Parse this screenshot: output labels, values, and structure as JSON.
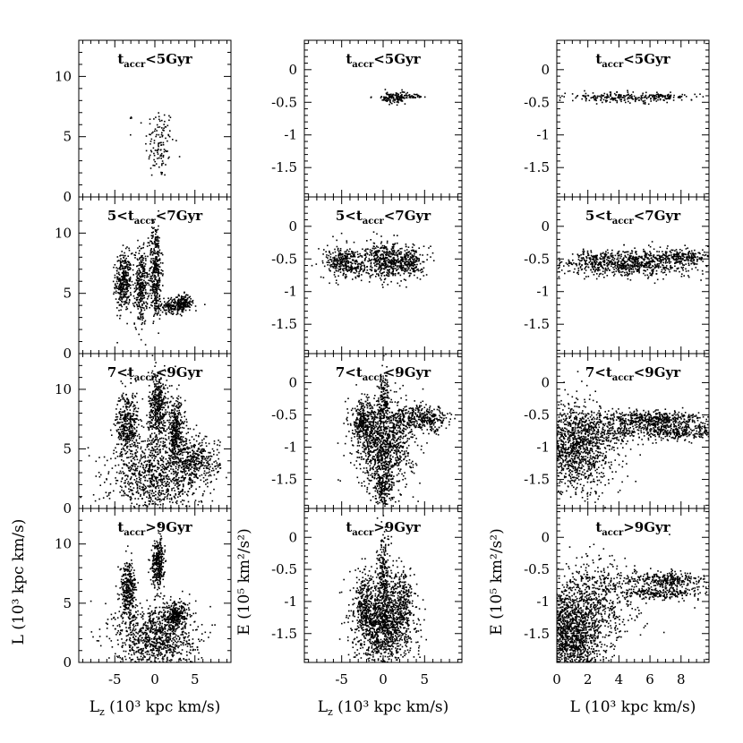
{
  "figure": {
    "columns": [
      {
        "key": "lz_l",
        "xlabel_main": "L",
        "xlabel_sub": "z",
        "xlabel_rest": " (10³ kpc km/s)",
        "ylabel": "L  (10³ kpc km/s)"
      },
      {
        "key": "lz_e",
        "xlabel_main": "L",
        "xlabel_sub": "z",
        "xlabel_rest": " (10³ kpc km/s)",
        "ylabel": "E  (10⁵ km²/s²)"
      },
      {
        "key": "l_e",
        "xlabel_main": "L",
        "xlabel_sub": "",
        "xlabel_rest": " (10³ kpc km/s)",
        "ylabel": "E  (10⁵ km²/s²)"
      }
    ],
    "rows": [
      {
        "pre": "",
        "mid": "t",
        "sub": "accr",
        "post": "<5Gyr"
      },
      {
        "pre": "5<",
        "mid": "t",
        "sub": "accr",
        "post": "<7Gyr"
      },
      {
        "pre": "7<",
        "mid": "t",
        "sub": "accr",
        "post": "<9Gyr"
      },
      {
        "pre": "",
        "mid": "t",
        "sub": "accr",
        "post": ">9Gyr"
      }
    ]
  },
  "chart_data": [
    {
      "type": "scatter",
      "column": "lz_l",
      "xlim": [
        -9.5,
        9.5
      ],
      "ylim": [
        0,
        13
      ],
      "xticks": [
        -5,
        0,
        5
      ],
      "yticks": [
        0,
        5,
        10
      ],
      "xticklabels": [
        "-5",
        "0",
        "5"
      ],
      "yticklabels": [
        "0",
        "5",
        "10"
      ],
      "panels": [
        {
          "label_row": 0,
          "clouds": [
            {
              "cx": 0.5,
              "cy": 4.5,
              "sx": 0.9,
              "sy": 1.5,
              "n": 120
            },
            {
              "cx": -3.0,
              "cy": 6.6,
              "sx": 0.1,
              "sy": 0.1,
              "n": 3
            }
          ]
        },
        {
          "label_row": 1,
          "clouds": [
            {
              "cx": -4.0,
              "cy": 6.0,
              "sx": 0.5,
              "sy": 1.2,
              "n": 360
            },
            {
              "cx": -1.8,
              "cy": 5.6,
              "sx": 0.4,
              "sy": 1.6,
              "n": 300
            },
            {
              "cx": 0.0,
              "cy": 7.0,
              "sx": 0.4,
              "sy": 2.0,
              "n": 360
            },
            {
              "cx": 2.3,
              "cy": 4.0,
              "sx": 1.2,
              "sy": 0.3,
              "n": 220
            },
            {
              "cx": 3.5,
              "cy": 4.4,
              "sx": 0.5,
              "sy": 0.3,
              "n": 100
            }
          ]
        },
        {
          "label_row": 2,
          "clouds": [
            {
              "cx": -3.5,
              "cy": 7.0,
              "sx": 0.7,
              "sy": 1.5,
              "n": 420
            },
            {
              "cx": 0.3,
              "cy": 8.5,
              "sx": 0.6,
              "sy": 1.6,
              "n": 450
            },
            {
              "cx": 2.5,
              "cy": 6.5,
              "sx": 0.6,
              "sy": 1.4,
              "n": 360
            },
            {
              "cx": 0.0,
              "cy": 2.5,
              "sx": 2.8,
              "sy": 1.6,
              "n": 900
            },
            {
              "cx": 5.0,
              "cy": 4.0,
              "sx": 1.5,
              "sy": 1.0,
              "n": 380
            }
          ]
        },
        {
          "label_row": 3,
          "clouds": [
            {
              "cx": -3.4,
              "cy": 6.2,
              "sx": 0.5,
              "sy": 1.2,
              "n": 320
            },
            {
              "cx": 0.3,
              "cy": 8.4,
              "sx": 0.4,
              "sy": 1.0,
              "n": 320
            },
            {
              "cx": 0.0,
              "cy": 2.2,
              "sx": 2.5,
              "sy": 1.4,
              "n": 950
            },
            {
              "cx": 2.5,
              "cy": 4.0,
              "sx": 0.8,
              "sy": 0.6,
              "n": 260
            }
          ]
        }
      ]
    },
    {
      "type": "scatter",
      "column": "lz_e",
      "xlim": [
        -9.5,
        9.5
      ],
      "ylim": [
        -1.95,
        0.45
      ],
      "xticks": [
        -5,
        0,
        5
      ],
      "yticks": [
        -1.5,
        -1,
        -0.5,
        0
      ],
      "xticklabels": [
        "-5",
        "0",
        "5"
      ],
      "yticklabels": [
        "-1.5",
        "-1",
        "-0.5",
        "0"
      ],
      "panels": [
        {
          "label_row": 0,
          "clouds": [
            {
              "cx": 1.2,
              "cy": -0.42,
              "sx": 0.7,
              "sy": 0.05,
              "n": 110
            },
            {
              "cx": 3.5,
              "cy": -0.4,
              "sx": 0.9,
              "sy": 0.02,
              "n": 40
            },
            {
              "cx": -1.5,
              "cy": -0.42,
              "sx": 0.05,
              "sy": 0.02,
              "n": 2
            }
          ]
        },
        {
          "label_row": 1,
          "clouds": [
            {
              "cx": -4.5,
              "cy": -0.55,
              "sx": 1.4,
              "sy": 0.12,
              "n": 360
            },
            {
              "cx": 0.0,
              "cy": -0.52,
              "sx": 1.0,
              "sy": 0.14,
              "n": 340
            },
            {
              "cx": 2.8,
              "cy": -0.53,
              "sx": 1.0,
              "sy": 0.12,
              "n": 280
            }
          ]
        },
        {
          "label_row": 2,
          "clouds": [
            {
              "cx": 0.0,
              "cy": -0.95,
              "sx": 1.7,
              "sy": 0.35,
              "n": 1100
            },
            {
              "cx": -2.5,
              "cy": -0.6,
              "sx": 0.7,
              "sy": 0.15,
              "n": 260
            },
            {
              "cx": 4.5,
              "cy": -0.55,
              "sx": 1.8,
              "sy": 0.1,
              "n": 380
            },
            {
              "cx": 0.0,
              "cy": -0.2,
              "sx": 0.3,
              "sy": 0.2,
              "n": 140
            },
            {
              "cx": 0.0,
              "cy": -1.6,
              "sx": 0.5,
              "sy": 0.2,
              "n": 180
            }
          ]
        },
        {
          "label_row": 3,
          "clouds": [
            {
              "cx": 0.0,
              "cy": -1.35,
              "sx": 1.7,
              "sy": 0.35,
              "n": 1300
            },
            {
              "cx": 0.0,
              "cy": -0.55,
              "sx": 0.4,
              "sy": 0.3,
              "n": 220
            },
            {
              "cx": -2.3,
              "cy": -1.0,
              "sx": 0.6,
              "sy": 0.25,
              "n": 220
            },
            {
              "cx": 2.3,
              "cy": -1.0,
              "sx": 0.6,
              "sy": 0.25,
              "n": 220
            }
          ]
        }
      ]
    },
    {
      "type": "scatter",
      "column": "l_e",
      "xlim": [
        0,
        9.8
      ],
      "ylim": [
        -1.95,
        0.45
      ],
      "xticks": [
        0,
        2,
        4,
        6,
        8
      ],
      "yticks": [
        -1.5,
        -1,
        -0.5,
        0
      ],
      "xticklabels": [
        "0",
        "2",
        "4",
        "6",
        "8"
      ],
      "yticklabels": [
        "-1.5",
        "-1",
        "-0.5",
        "0"
      ],
      "panels": [
        {
          "label_row": 0,
          "clouds": [
            {
              "cx": 4.0,
              "cy": -0.42,
              "sx": 1.8,
              "sy": 0.04,
              "n": 220
            },
            {
              "cx": 7.0,
              "cy": -0.4,
              "sx": 1.0,
              "sy": 0.02,
              "n": 60
            }
          ]
        },
        {
          "label_row": 1,
          "clouds": [
            {
              "cx": 4.5,
              "cy": -0.55,
              "sx": 2.3,
              "sy": 0.1,
              "n": 900
            },
            {
              "cx": 8.0,
              "cy": -0.45,
              "sx": 0.8,
              "sy": 0.05,
              "n": 150
            }
          ]
        },
        {
          "label_row": 2,
          "clouds": [
            {
              "cx": 1.3,
              "cy": -1.0,
              "sx": 1.2,
              "sy": 0.35,
              "n": 1200
            },
            {
              "cx": 6.5,
              "cy": -0.55,
              "sx": 1.6,
              "sy": 0.06,
              "n": 420
            },
            {
              "cx": 7.5,
              "cy": -0.75,
              "sx": 1.6,
              "sy": 0.06,
              "n": 340
            },
            {
              "cx": 3.5,
              "cy": -0.7,
              "sx": 1.5,
              "sy": 0.12,
              "n": 260
            }
          ]
        },
        {
          "label_row": 3,
          "clouds": [
            {
              "cx": 0.9,
              "cy": -1.5,
              "sx": 1.1,
              "sy": 0.35,
              "n": 1500
            },
            {
              "cx": 2.5,
              "cy": -0.9,
              "sx": 1.5,
              "sy": 0.3,
              "n": 520
            },
            {
              "cx": 7.0,
              "cy": -0.65,
              "sx": 1.3,
              "sy": 0.06,
              "n": 300
            },
            {
              "cx": 6.5,
              "cy": -0.85,
              "sx": 1.3,
              "sy": 0.05,
              "n": 240
            }
          ]
        }
      ]
    }
  ]
}
